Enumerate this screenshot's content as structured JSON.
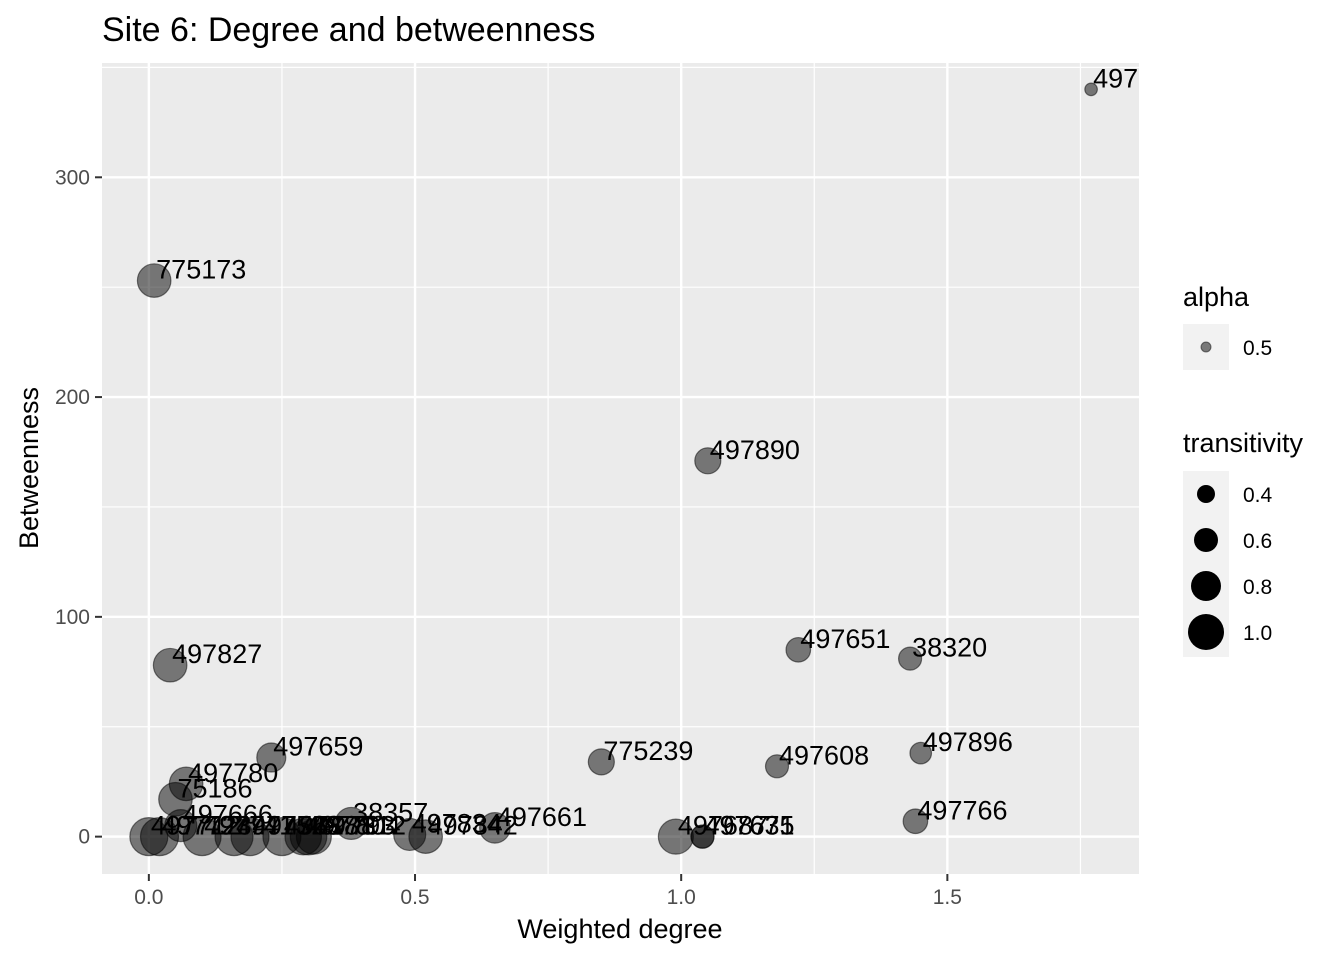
{
  "chart_data": {
    "type": "scatter",
    "title": "Site 6: Degree and betweenness",
    "xlabel": "Weighted degree",
    "ylabel": "Betweenness",
    "xlim": [
      -0.088,
      1.86
    ],
    "ylim": [
      -17,
      352
    ],
    "x_ticks": [
      0.0,
      0.5,
      1.0,
      1.5
    ],
    "x_tick_labels": [
      "0.0",
      "0.5",
      "1.0",
      "1.5"
    ],
    "y_ticks": [
      0,
      100,
      200,
      300
    ],
    "y_tick_labels": [
      "0",
      "100",
      "200",
      "300"
    ],
    "grid": true,
    "point_color": "#000000",
    "point_alpha": 0.5,
    "panel_background": "#ebebeb",
    "points": [
      {
        "label": "775173",
        "x": 0.01,
        "y": 253,
        "transitivity": 0.85
      },
      {
        "label": "497890",
        "x": 1.05,
        "y": 171,
        "transitivity": 0.6
      },
      {
        "label": "497651",
        "x": 1.22,
        "y": 85,
        "transitivity": 0.55
      },
      {
        "label": "38320",
        "x": 1.43,
        "y": 81,
        "transitivity": 0.5
      },
      {
        "label": "497827",
        "x": 0.04,
        "y": 78,
        "transitivity": 0.85
      },
      {
        "label": "497659",
        "x": 0.23,
        "y": 36,
        "transitivity": 0.7
      },
      {
        "label": "497896",
        "x": 1.45,
        "y": 38,
        "transitivity": 0.45
      },
      {
        "label": "775239",
        "x": 0.85,
        "y": 34,
        "transitivity": 0.6
      },
      {
        "label": "497608",
        "x": 1.18,
        "y": 32,
        "transitivity": 0.5
      },
      {
        "label": "497780",
        "x": 0.07,
        "y": 24,
        "transitivity": 0.85
      },
      {
        "label": "75186",
        "x": 0.05,
        "y": 17,
        "transitivity": 0.85
      },
      {
        "label": "497766",
        "x": 1.44,
        "y": 7,
        "transitivity": 0.55
      },
      {
        "label": "497661",
        "x": 0.65,
        "y": 4,
        "transitivity": 0.75
      },
      {
        "label": "38357",
        "x": 0.38,
        "y": 6,
        "transitivity": 0.8
      },
      {
        "label": "497666",
        "x": 0.06,
        "y": 5,
        "transitivity": 0.8
      },
      {
        "label": "497687",
        "x": 0.99,
        "y": 0,
        "transitivity": 0.9
      },
      {
        "label": "497631",
        "x": 1.04,
        "y": 0,
        "transitivity": 0.5
      },
      {
        "label": "497675",
        "x": 1.04,
        "y": 0,
        "transitivity": 0.5
      },
      {
        "label": "497712",
        "x": 0.0,
        "y": 0,
        "transitivity": 1.0
      },
      {
        "label": "497723",
        "x": 0.02,
        "y": 0,
        "transitivity": 1.0
      },
      {
        "label": "497741",
        "x": 0.1,
        "y": 0,
        "transitivity": 1.0
      },
      {
        "label": "497752",
        "x": 0.16,
        "y": 0,
        "transitivity": 1.0
      },
      {
        "label": "497768",
        "x": 0.19,
        "y": 0,
        "transitivity": 1.0
      },
      {
        "label": "497781",
        "x": 0.25,
        "y": 0,
        "transitivity": 1.0
      },
      {
        "label": "497793",
        "x": 0.29,
        "y": 0,
        "transitivity": 0.95
      },
      {
        "label": "497804",
        "x": 0.3,
        "y": 0,
        "transitivity": 0.95
      },
      {
        "label": "497812",
        "x": 0.31,
        "y": 0,
        "transitivity": 0.9
      },
      {
        "label": "497834",
        "x": 0.49,
        "y": 1,
        "transitivity": 0.8
      },
      {
        "label": "497842",
        "x": 0.52,
        "y": 0,
        "transitivity": 0.85
      },
      {
        "label": "497",
        "x": 1.77,
        "y": 340,
        "transitivity": 0.15
      }
    ]
  },
  "legend": {
    "alpha_title": "alpha",
    "alpha_items": [
      {
        "label": "0.5"
      }
    ],
    "transitivity_title": "transitivity",
    "transitivity_items": [
      {
        "label": "0.4",
        "value": 0.4
      },
      {
        "label": "0.6",
        "value": 0.6
      },
      {
        "label": "0.8",
        "value": 0.8
      },
      {
        "label": "1.0",
        "value": 1.0
      }
    ]
  }
}
